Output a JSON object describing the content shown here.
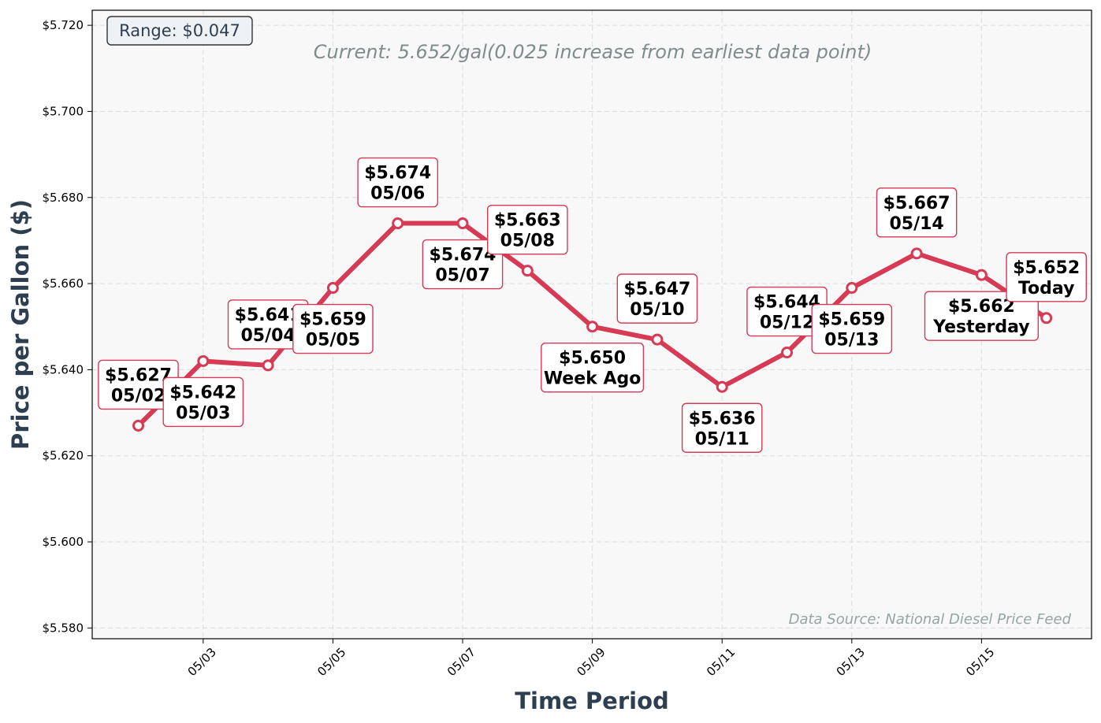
{
  "chart_data": {
    "type": "line",
    "xlabel": "Time Period",
    "ylabel": "Price per Gallon ($)",
    "ylim": [
      5.5775,
      5.7235
    ],
    "y_ticks": [
      "$5.580",
      "$5.600",
      "$5.620",
      "$5.640",
      "$5.660",
      "$5.680",
      "$5.700",
      "$5.720"
    ],
    "y_tick_values": [
      5.58,
      5.6,
      5.62,
      5.64,
      5.66,
      5.68,
      5.7,
      5.72
    ],
    "x_ticks": [
      "05/03",
      "05/05",
      "05/07",
      "05/09",
      "05/11",
      "05/13",
      "05/15"
    ],
    "x_tick_indices": [
      1,
      3,
      5,
      7,
      9,
      11,
      13
    ],
    "grid": true,
    "series": [
      {
        "color": "#d63a55",
        "points": [
          {
            "x": "05/02",
            "y": 5.627,
            "price_label": "$5.627",
            "date_label": "05/02",
            "label_pos": "above"
          },
          {
            "x": "05/03",
            "y": 5.642,
            "price_label": "$5.642",
            "date_label": "05/03",
            "label_pos": "below"
          },
          {
            "x": "05/04",
            "y": 5.641,
            "price_label": "$5.641",
            "date_label": "05/04",
            "label_pos": "above"
          },
          {
            "x": "05/05",
            "y": 5.659,
            "price_label": "$5.659",
            "date_label": "05/05",
            "label_pos": "below"
          },
          {
            "x": "05/06",
            "y": 5.674,
            "price_label": "$5.674",
            "date_label": "05/06",
            "label_pos": "above"
          },
          {
            "x": "05/07",
            "y": 5.674,
            "price_label": "$5.674",
            "date_label": "05/07",
            "label_pos": "below"
          },
          {
            "x": "05/08",
            "y": 5.663,
            "price_label": "$5.663",
            "date_label": "05/08",
            "label_pos": "above"
          },
          {
            "x": "05/09",
            "y": 5.65,
            "price_label": "$5.650",
            "date_label": "Week Ago",
            "label_pos": "below"
          },
          {
            "x": "05/10",
            "y": 5.647,
            "price_label": "$5.647",
            "date_label": "05/10",
            "label_pos": "above"
          },
          {
            "x": "05/11",
            "y": 5.636,
            "price_label": "$5.636",
            "date_label": "05/11",
            "label_pos": "below"
          },
          {
            "x": "05/12",
            "y": 5.644,
            "price_label": "$5.644",
            "date_label": "05/12",
            "label_pos": "above"
          },
          {
            "x": "05/13",
            "y": 5.659,
            "price_label": "$5.659",
            "date_label": "05/13",
            "label_pos": "below"
          },
          {
            "x": "05/14",
            "y": 5.667,
            "price_label": "$5.667",
            "date_label": "05/14",
            "label_pos": "above"
          },
          {
            "x": "05/15",
            "y": 5.662,
            "price_label": "$5.662",
            "date_label": "Yesterday",
            "label_pos": "below"
          },
          {
            "x": "05/16",
            "y": 5.652,
            "price_label": "$5.652",
            "date_label": "Today",
            "label_pos": "above"
          }
        ]
      }
    ],
    "annotations": {
      "range_box": "Range: $0.047",
      "current_text": "Current: 5.652/gal(0.025 increase from earliest data point)",
      "source_text": "Data Source: National Diesel Price Feed"
    }
  }
}
